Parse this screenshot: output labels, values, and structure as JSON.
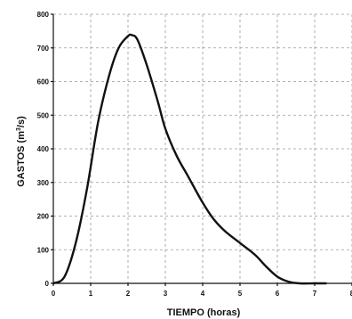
{
  "chart_data": {
    "type": "line",
    "xlabel": "TIEMPO (horas)",
    "ylabel_main": "GASTOS (m",
    "ylabel_sup": "3",
    "ylabel_tail": "/s)",
    "xlim": [
      0,
      8
    ],
    "ylim": [
      0,
      800
    ],
    "x_ticks": [
      0,
      1,
      2,
      3,
      4,
      5,
      6,
      7,
      8
    ],
    "x_tick_labels": [
      "0",
      "1",
      "2",
      "3",
      "4",
      "5",
      "6",
      "7",
      "8"
    ],
    "y_ticks": [
      0,
      100,
      200,
      300,
      400,
      500,
      600,
      700,
      800
    ],
    "y_tick_labels": [
      "0",
      "100",
      "200",
      "300",
      "400",
      "500",
      "600",
      "700",
      "800"
    ],
    "grid": true,
    "series": [
      {
        "x": [
          0,
          0.3,
          0.6,
          0.9,
          1.2,
          1.5,
          1.75,
          2.0,
          2.1,
          2.25,
          2.5,
          2.8,
          3.0,
          3.3,
          3.6,
          4.0,
          4.3,
          4.6,
          5.0,
          5.4,
          5.7,
          6.0,
          6.3,
          6.6,
          7.0,
          7.3
        ],
        "y": [
          0,
          20,
          120,
          280,
          480,
          620,
          700,
          735,
          738,
          725,
          650,
          540,
          460,
          380,
          320,
          240,
          190,
          155,
          120,
          85,
          50,
          20,
          5,
          0,
          0,
          0
        ]
      }
    ]
  }
}
